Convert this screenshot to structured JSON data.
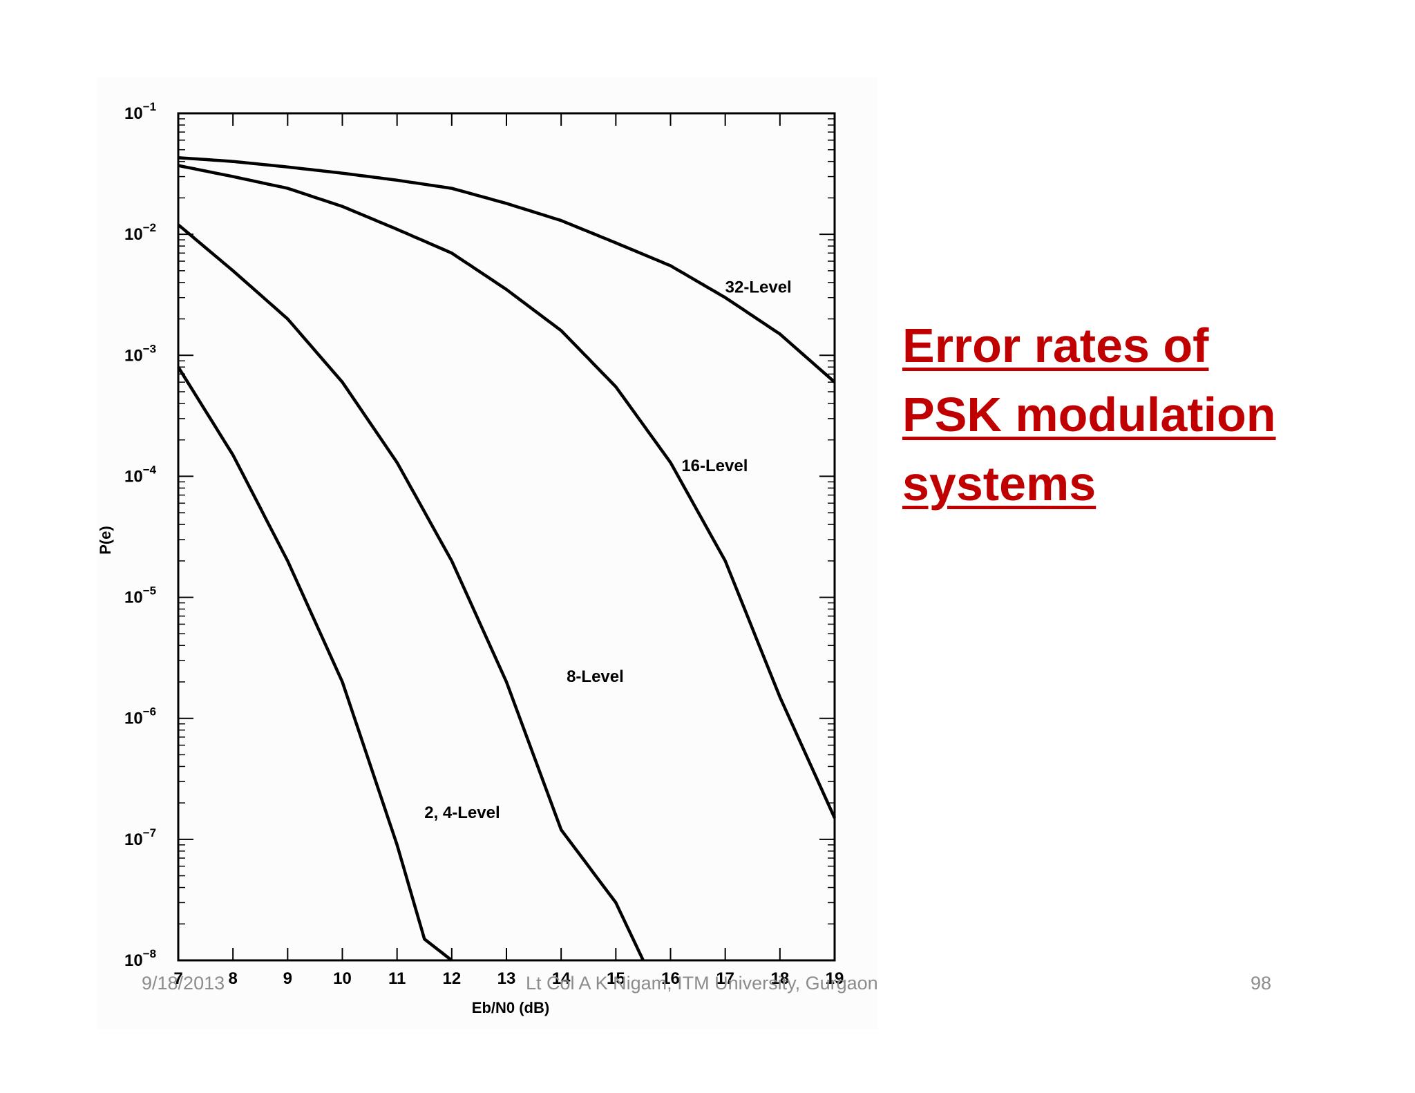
{
  "slide": {
    "title": "Error rates of PSK modulation systems",
    "title_color": "#c00000",
    "footer": {
      "date": "9/18/2013",
      "author": "Lt Col A K Nigam, ITM University, Gurgaon",
      "page": "98"
    }
  },
  "chart_data": {
    "type": "line",
    "title": "",
    "xlabel": "Eb/N0 (dB)",
    "ylabel": "P(e)",
    "xlim": [
      7,
      19
    ],
    "ylim": [
      1e-08,
      0.1
    ],
    "yscale": "log",
    "x_ticks": [
      "7",
      "8",
      "9",
      "10",
      "11",
      "12",
      "13",
      "14",
      "15",
      "16",
      "17",
      "18",
      "19"
    ],
    "y_ticks": [
      {
        "base": "10",
        "exp": "−1",
        "value": 0.1
      },
      {
        "base": "10",
        "exp": "−2",
        "value": 0.01
      },
      {
        "base": "10",
        "exp": "−3",
        "value": 0.001
      },
      {
        "base": "10",
        "exp": "−4",
        "value": 0.0001
      },
      {
        "base": "10",
        "exp": "−5",
        "value": 1e-05
      },
      {
        "base": "10",
        "exp": "−6",
        "value": 1e-06
      },
      {
        "base": "10",
        "exp": "−7",
        "value": 1e-07
      },
      {
        "base": "10",
        "exp": "−8",
        "value": 1e-08
      }
    ],
    "series": [
      {
        "name": "2, 4-Level",
        "x": [
          7,
          8,
          9,
          10,
          11,
          11.5,
          12
        ],
        "y": [
          0.0008,
          0.00015,
          2e-05,
          2e-06,
          9e-08,
          1.5e-08,
          1e-08
        ]
      },
      {
        "name": "8-Level",
        "x": [
          7,
          8,
          9,
          10,
          11,
          12,
          13,
          14,
          15,
          15.5
        ],
        "y": [
          0.012,
          0.005,
          0.002,
          0.0006,
          0.00013,
          2e-05,
          2e-06,
          1.2e-07,
          3e-08,
          1e-08
        ]
      },
      {
        "name": "16-Level",
        "x": [
          7,
          8,
          9,
          10,
          11,
          12,
          13,
          14,
          15,
          16,
          17,
          18,
          19
        ],
        "y": [
          0.037,
          0.03,
          0.024,
          0.017,
          0.011,
          0.007,
          0.0035,
          0.0016,
          0.00055,
          0.00013,
          2e-05,
          1.5e-06,
          1.5e-07
        ]
      },
      {
        "name": "32-Level",
        "x": [
          7,
          8,
          9,
          10,
          11,
          12,
          13,
          14,
          15,
          16,
          17,
          18,
          19
        ],
        "y": [
          0.043,
          0.04,
          0.036,
          0.032,
          0.028,
          0.024,
          0.018,
          0.013,
          0.0085,
          0.0055,
          0.003,
          0.0015,
          0.0006
        ]
      }
    ],
    "curve_labels": [
      {
        "text": "32-Level",
        "x": 17.0,
        "y": 0.0033
      },
      {
        "text": "16-Level",
        "x": 16.2,
        "y": 0.00011
      },
      {
        "text": "8-Level",
        "x": 14.1,
        "y": 2e-06
      },
      {
        "text": "2, 4-Level",
        "x": 11.5,
        "y": 1.5e-07
      }
    ],
    "grid": false,
    "line_color": "#000000"
  }
}
